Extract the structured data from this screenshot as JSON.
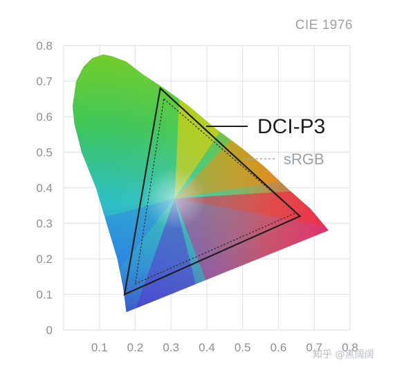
{
  "chart_data": {
    "type": "scatter",
    "title": "CIE 1976",
    "xlabel": "",
    "ylabel": "",
    "xlim": [
      0,
      0.8
    ],
    "ylim": [
      0,
      0.8
    ],
    "x_ticks": [
      "0.1",
      "0.2",
      "0.3",
      "0.4",
      "0.5",
      "0.6",
      "0.7",
      "0.8"
    ],
    "y_ticks": [
      "0",
      "0.1",
      "0.2",
      "0.3",
      "0.4",
      "0.5",
      "0.6",
      "0.7",
      "0.8"
    ],
    "grid": true,
    "spectral_locus": [
      [
        0.175,
        0.05
      ],
      [
        0.166,
        0.12
      ],
      [
        0.15,
        0.2
      ],
      [
        0.12,
        0.3
      ],
      [
        0.09,
        0.4
      ],
      [
        0.05,
        0.5
      ],
      [
        0.03,
        0.58
      ],
      [
        0.025,
        0.63
      ],
      [
        0.035,
        0.7
      ],
      [
        0.055,
        0.74
      ],
      [
        0.08,
        0.765
      ],
      [
        0.11,
        0.775
      ],
      [
        0.135,
        0.77
      ],
      [
        0.175,
        0.755
      ],
      [
        0.22,
        0.72
      ],
      [
        0.28,
        0.68
      ],
      [
        0.35,
        0.63
      ],
      [
        0.42,
        0.57
      ],
      [
        0.5,
        0.51
      ],
      [
        0.56,
        0.46
      ],
      [
        0.623,
        0.4
      ],
      [
        0.69,
        0.34
      ],
      [
        0.74,
        0.28
      ]
    ],
    "white_point": [
      0.31,
      0.37
    ],
    "series": [
      {
        "name": "DCI-P3",
        "line_style": "solid",
        "color": "#1e1e1e",
        "points": [
          [
            0.27,
            0.68
          ],
          [
            0.66,
            0.32
          ],
          [
            0.17,
            0.1
          ]
        ]
      },
      {
        "name": "sRGB",
        "line_style": "dotted",
        "color": "#333333",
        "points": [
          [
            0.28,
            0.65
          ],
          [
            0.65,
            0.33
          ],
          [
            0.2,
            0.13
          ]
        ]
      }
    ]
  },
  "watermark": "知乎 @黑阔阔",
  "colors": {
    "grid": "#e3e4e7",
    "tick_text": "#8a8f99",
    "title_text": "#9aa0a8"
  }
}
